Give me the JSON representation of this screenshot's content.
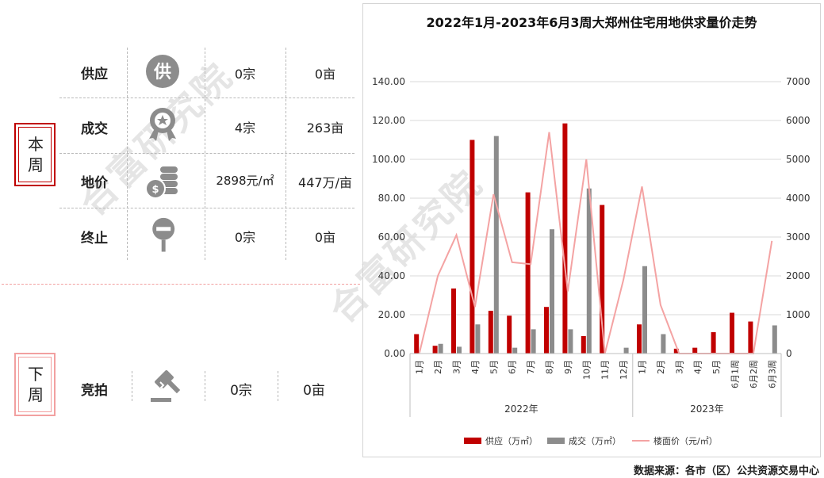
{
  "watermark": "合富研究院",
  "this_week": {
    "badge": "本周",
    "rows": [
      {
        "label": "供应",
        "icon": "supply-icon",
        "count": "0宗",
        "area": "0亩"
      },
      {
        "label": "成交",
        "icon": "deal-medal-icon",
        "count": "4宗",
        "area": "263亩"
      },
      {
        "label": "地价",
        "icon": "coins-icon",
        "count": "2898元/㎡",
        "area": "447万/亩"
      },
      {
        "label": "终止",
        "icon": "stop-sign-icon",
        "count": "0宗",
        "area": "0亩"
      }
    ]
  },
  "next_week": {
    "badge": "下周",
    "rows": [
      {
        "label": "竞拍",
        "icon": "auction-gavel-icon",
        "count": "0宗",
        "area": "0亩"
      }
    ]
  },
  "icon_color": "#8c8c8c",
  "badge_colors": {
    "this_week": "#c00000",
    "next_week": "#f2a0a0"
  },
  "chart_data": {
    "type": "bar",
    "title": "2022年1月-2023年6月3周大郑州住宅用地供求量价走势",
    "categories": [
      "1月",
      "2月",
      "3月",
      "4月",
      "5月",
      "6月",
      "7月",
      "8月",
      "9月",
      "10月",
      "11月",
      "12月",
      "1月",
      "2月",
      "3月",
      "4月",
      "5月",
      "6月1周",
      "6月2周",
      "6月3周"
    ],
    "groups": [
      {
        "label": "2022年",
        "count": 12
      },
      {
        "label": "2023年",
        "count": 8
      }
    ],
    "series": [
      {
        "name": "供应（万㎡）",
        "kind": "bar",
        "axis": "left",
        "color": "#c00000",
        "values": [
          10,
          4,
          33.5,
          110,
          22,
          19.5,
          83,
          24,
          118.5,
          9,
          76.5,
          0,
          15,
          0,
          2.5,
          3,
          11,
          21,
          16.5,
          0
        ]
      },
      {
        "name": "成交（万㎡）",
        "kind": "bar",
        "axis": "left",
        "color": "#8c8c8c",
        "values": [
          0,
          5,
          3.5,
          15,
          112,
          3,
          12.5,
          64,
          12.5,
          85,
          0,
          3,
          45,
          10,
          0,
          0,
          0,
          0,
          0,
          14.5
        ]
      },
      {
        "name": "楼面价（元/㎡）",
        "kind": "line",
        "axis": "right",
        "color": "#f4a3a3",
        "values": [
          0,
          2000,
          3050,
          1200,
          4100,
          2350,
          2300,
          5700,
          1600,
          5000,
          0,
          1900,
          4300,
          1250,
          0,
          0,
          0,
          0,
          0,
          2900
        ]
      }
    ],
    "y_left": {
      "min": 0,
      "max": 140,
      "step": 20,
      "ticks": [
        "0.00",
        "20.00",
        "40.00",
        "60.00",
        "80.00",
        "100.00",
        "120.00",
        "140.00"
      ]
    },
    "y_right": {
      "min": 0,
      "max": 7000,
      "step": 1000,
      "ticks": [
        "0",
        "1000",
        "2000",
        "3000",
        "4000",
        "5000",
        "6000",
        "7000"
      ]
    },
    "grid": true,
    "legend_position": "bottom"
  },
  "source_note": "数据来源：各市（区）公共资源交易中心"
}
